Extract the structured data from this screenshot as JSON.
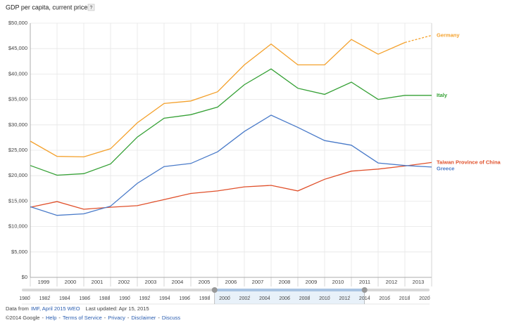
{
  "chart_data": {
    "type": "line",
    "title": "GDP per capita, current prices",
    "help_icon": "?",
    "x": [
      1999,
      2000,
      2001,
      2002,
      2003,
      2004,
      2005,
      2006,
      2007,
      2008,
      2009,
      2010,
      2011,
      2012,
      2013,
      2014
    ],
    "xlim": [
      1999,
      2014
    ],
    "xticks": [
      1999,
      2000,
      2001,
      2002,
      2003,
      2004,
      2005,
      2006,
      2007,
      2008,
      2009,
      2010,
      2011,
      2012,
      2013
    ],
    "ylim": [
      0,
      50000
    ],
    "yticks": [
      {
        "value": 0,
        "label": "$0"
      },
      {
        "value": 5000,
        "label": "$5,000"
      },
      {
        "value": 10000,
        "label": "$10,000"
      },
      {
        "value": 15000,
        "label": "$15,000"
      },
      {
        "value": 20000,
        "label": "$20,000"
      },
      {
        "value": 25000,
        "label": "$25,000"
      },
      {
        "value": 30000,
        "label": "$30,000"
      },
      {
        "value": 35000,
        "label": "$35,000"
      },
      {
        "value": 40000,
        "label": "$40,000"
      },
      {
        "value": 45000,
        "label": "$45,000"
      },
      {
        "value": 50000,
        "label": "$50,000"
      }
    ],
    "grid": true,
    "series": [
      {
        "name": "Germany",
        "color": "#f4a12c",
        "dashed_from": 2013,
        "values": [
          26800,
          23800,
          23700,
          25300,
          30400,
          34200,
          34700,
          36500,
          41800,
          45900,
          41800,
          41800,
          46800,
          43900,
          46200,
          47600
        ]
      },
      {
        "name": "Italy",
        "color": "#36a136",
        "values": [
          22000,
          20100,
          20400,
          22300,
          27600,
          31300,
          32000,
          33500,
          37900,
          41000,
          37200,
          36000,
          38400,
          35000,
          35800,
          35800
        ]
      },
      {
        "name": "Taiwan Province of China",
        "color": "#e0502b",
        "values": [
          13800,
          14900,
          13400,
          13800,
          14100,
          15300,
          16500,
          17000,
          17800,
          18100,
          17000,
          19300,
          20900,
          21300,
          21900,
          22600
        ]
      },
      {
        "name": "Greece",
        "color": "#4a7bc9",
        "values": [
          13900,
          12200,
          12500,
          14000,
          18500,
          21800,
          22400,
          24700,
          28700,
          31900,
          29500,
          26900,
          26000,
          22500,
          22000,
          21700
        ]
      }
    ],
    "timeline": {
      "xlim": [
        1980,
        2020.5
      ],
      "xticks": [
        1980,
        1982,
        1984,
        1986,
        1988,
        1990,
        1992,
        1994,
        1996,
        1998,
        2000,
        2002,
        2004,
        2006,
        2008,
        2010,
        2012,
        2014,
        2016,
        2018,
        2020
      ],
      "selection": [
        1999,
        2014
      ]
    }
  },
  "footer": {
    "source_prefix": "Data from",
    "source_link": "IMF, April 2015 WEO",
    "updated": "Last updated: Apr 15, 2015",
    "copyright": "©2014 Google",
    "separator": "-",
    "links": [
      "Help",
      "Terms of Service",
      "Privacy",
      "Disclaimer",
      "Discuss"
    ]
  }
}
